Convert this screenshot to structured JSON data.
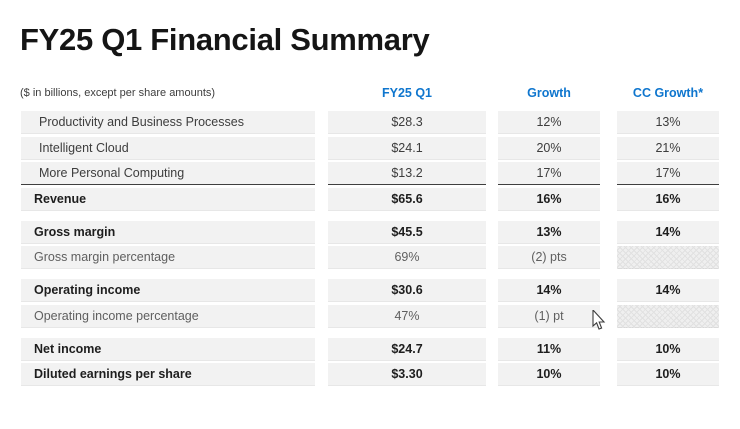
{
  "page": {
    "title": "FY25 Q1 Financial Summary",
    "subtitle": "($ in billions, except per share amounts)"
  },
  "colors": {
    "accent_blue": "#0f76ce",
    "row_band": "#f2f2f2",
    "sum_rule": "#3f3f3f"
  },
  "table": {
    "columns": [
      "FY25 Q1",
      "Growth",
      "CC Growth*"
    ],
    "sections": [
      {
        "rows": [
          {
            "label": "Productivity and Business Processes",
            "indent": true,
            "values": [
              "$28.3",
              "12%",
              "13%"
            ]
          },
          {
            "label": "Intelligent Cloud",
            "indent": true,
            "values": [
              "$24.1",
              "20%",
              "21%"
            ]
          },
          {
            "label": "More Personal Computing",
            "indent": true,
            "sumline": true,
            "values": [
              "$13.2",
              "17%",
              "17%"
            ]
          },
          {
            "label": "Revenue",
            "bold": true,
            "values": [
              "$65.6",
              "16%",
              "16%"
            ]
          }
        ]
      },
      {
        "rows": [
          {
            "label": "Gross margin",
            "bold": true,
            "values": [
              "$45.5",
              "13%",
              "14%"
            ]
          },
          {
            "label": "Gross margin percentage",
            "muted": true,
            "values": [
              "69%",
              "(2) pts",
              {
                "hatched": true
              }
            ]
          }
        ]
      },
      {
        "rows": [
          {
            "label": "Operating income",
            "bold": true,
            "values": [
              "$30.6",
              "14%",
              "14%"
            ]
          },
          {
            "label": "Operating income percentage",
            "muted": true,
            "values": [
              "47%",
              "(1) pt",
              {
                "hatched": true
              }
            ]
          }
        ]
      },
      {
        "rows": [
          {
            "label": "Net income",
            "bold": true,
            "values": [
              "$24.7",
              "11%",
              "10%"
            ]
          },
          {
            "label": "Diluted earnings per share",
            "bold": true,
            "values": [
              "$3.30",
              "10%",
              "10%"
            ]
          }
        ]
      }
    ]
  }
}
